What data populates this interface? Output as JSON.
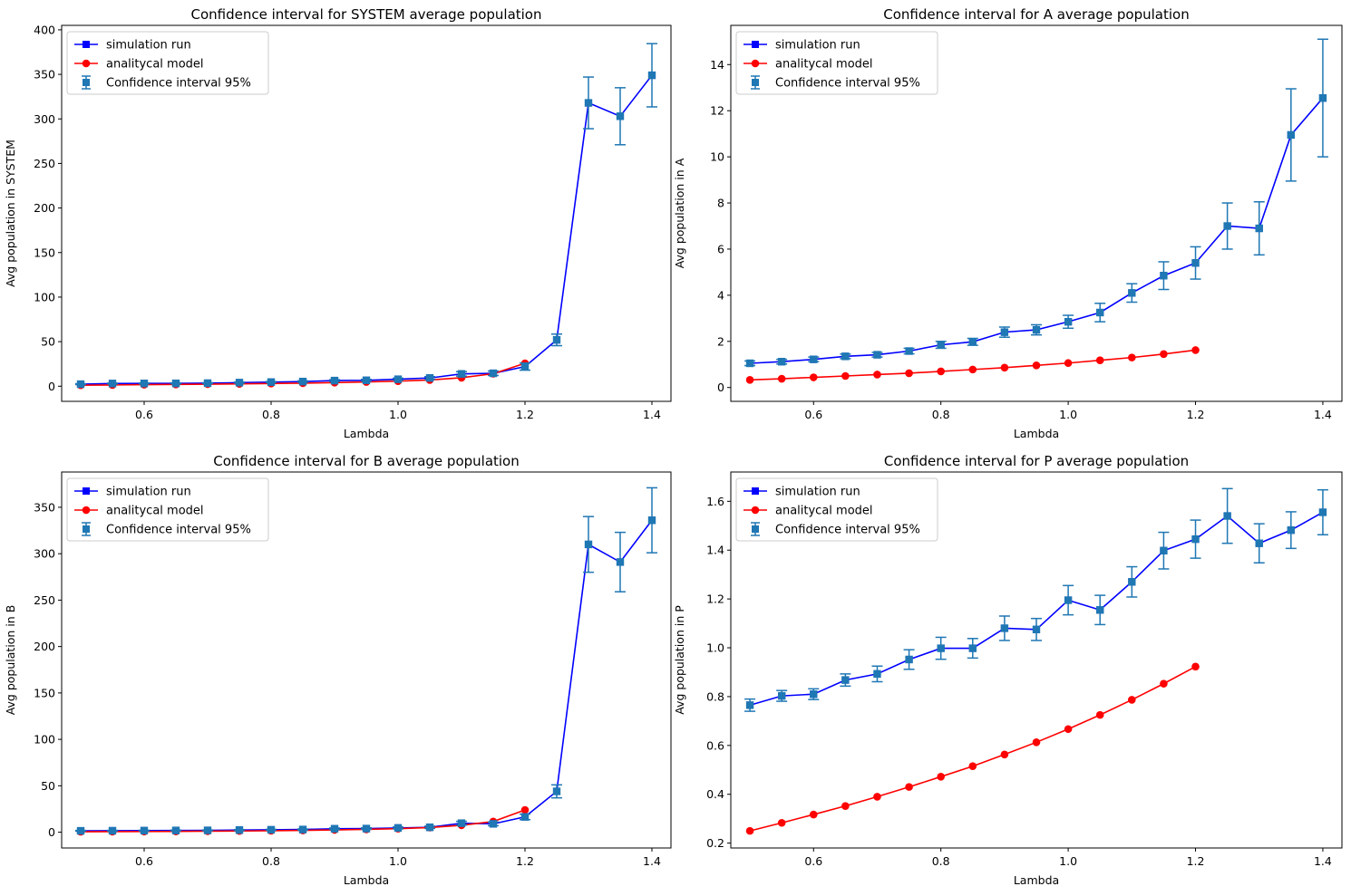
{
  "chart_data": [
    {
      "type": "line",
      "title": "Confidence interval for SYSTEM average population",
      "xlabel": "Lambda",
      "ylabel": "Avg population in SYSTEM",
      "xlim": [
        0.47,
        1.43
      ],
      "ylim": [
        -17,
        405
      ],
      "xticks": [
        0.6,
        0.8,
        1.0,
        1.2,
        1.4
      ],
      "xtick_labels": [
        "0.6",
        "0.8",
        "1.0",
        "1.2",
        "1.4"
      ],
      "yticks": [
        0,
        50,
        100,
        150,
        200,
        250,
        300,
        350,
        400
      ],
      "ytick_labels": [
        "0",
        "50",
        "100",
        "150",
        "200",
        "250",
        "300",
        "350",
        "400"
      ],
      "legend_position": "top-left",
      "series": [
        {
          "name": "simulation run",
          "color": "#0000ff",
          "marker": "square",
          "x": [
            0.5,
            0.55,
            0.6,
            0.65,
            0.7,
            0.75,
            0.8,
            0.85,
            0.9,
            0.95,
            1.0,
            1.05,
            1.1,
            1.15,
            1.2,
            1.25,
            1.3,
            1.35,
            1.4
          ],
          "y": [
            2.3,
            3.0,
            3.1,
            3.2,
            3.4,
            4.0,
            4.6,
            5.2,
            6.3,
            6.6,
            7.8,
            9.2,
            13.8,
            14.5,
            22.0,
            52.0,
            318.0,
            303.0,
            349.0
          ]
        },
        {
          "name": "analitycal model",
          "color": "#ff0000",
          "marker": "circle",
          "x": [
            0.5,
            0.55,
            0.6,
            0.65,
            0.7,
            0.75,
            0.8,
            0.85,
            0.9,
            0.95,
            1.0,
            1.05,
            1.1,
            1.15,
            1.2
          ],
          "y": [
            1.1,
            1.4,
            1.7,
            2.0,
            2.3,
            2.6,
            3.0,
            3.4,
            4.0,
            4.8,
            5.7,
            7.0,
            9.5,
            14.0,
            25.7
          ]
        },
        {
          "name": "Confidence interval 95%",
          "color": "#1f77b4",
          "marker": "square",
          "x": [
            0.5,
            0.55,
            0.6,
            0.65,
            0.7,
            0.75,
            0.8,
            0.85,
            0.9,
            0.95,
            1.0,
            1.05,
            1.1,
            1.15,
            1.2,
            1.25,
            1.3,
            1.35,
            1.4
          ],
          "y": [
            2.3,
            3.0,
            3.1,
            3.2,
            3.4,
            4.0,
            4.6,
            5.2,
            6.3,
            6.6,
            7.8,
            9.2,
            13.8,
            14.5,
            22.0,
            52.0,
            318.0,
            303.0,
            349.0
          ],
          "err": [
            0.5,
            0.5,
            0.5,
            0.5,
            0.5,
            0.6,
            0.6,
            0.8,
            1.0,
            1.0,
            1.2,
            1.5,
            2.5,
            2.5,
            4.0,
            6.5,
            29.0,
            32.0,
            35.5
          ]
        }
      ]
    },
    {
      "type": "line",
      "title": "Confidence interval for A average population",
      "xlabel": "Lambda",
      "ylabel": "Avg population in A",
      "xlim": [
        0.47,
        1.43
      ],
      "ylim": [
        -0.6,
        15.7
      ],
      "xticks": [
        0.6,
        0.8,
        1.0,
        1.2,
        1.4
      ],
      "xtick_labels": [
        "0.6",
        "0.8",
        "1.0",
        "1.2",
        "1.4"
      ],
      "yticks": [
        0,
        2,
        4,
        6,
        8,
        10,
        12,
        14
      ],
      "ytick_labels": [
        "0",
        "2",
        "4",
        "6",
        "8",
        "10",
        "12",
        "14"
      ],
      "legend_position": "top-left",
      "series": [
        {
          "name": "simulation run",
          "color": "#0000ff",
          "marker": "square",
          "x": [
            0.5,
            0.55,
            0.6,
            0.65,
            0.7,
            0.75,
            0.8,
            0.85,
            0.9,
            0.95,
            1.0,
            1.05,
            1.1,
            1.15,
            1.2,
            1.25,
            1.3,
            1.35,
            1.4
          ],
          "y": [
            1.05,
            1.12,
            1.22,
            1.35,
            1.42,
            1.58,
            1.85,
            1.98,
            2.4,
            2.5,
            2.85,
            3.25,
            4.1,
            4.85,
            5.4,
            7.0,
            6.9,
            10.95,
            12.55
          ]
        },
        {
          "name": "analitycal model",
          "color": "#ff0000",
          "marker": "circle",
          "x": [
            0.5,
            0.55,
            0.6,
            0.65,
            0.7,
            0.75,
            0.8,
            0.85,
            0.9,
            0.95,
            1.0,
            1.05,
            1.1,
            1.15,
            1.2
          ],
          "y": [
            0.33,
            0.38,
            0.44,
            0.5,
            0.56,
            0.62,
            0.7,
            0.78,
            0.86,
            0.96,
            1.06,
            1.18,
            1.3,
            1.45,
            1.62
          ]
        },
        {
          "name": "Confidence interval 95%",
          "color": "#1f77b4",
          "marker": "square",
          "x": [
            0.5,
            0.55,
            0.6,
            0.65,
            0.7,
            0.75,
            0.8,
            0.85,
            0.9,
            0.95,
            1.0,
            1.05,
            1.1,
            1.15,
            1.2,
            1.25,
            1.3,
            1.35,
            1.4
          ],
          "y": [
            1.05,
            1.12,
            1.22,
            1.35,
            1.42,
            1.58,
            1.85,
            1.98,
            2.4,
            2.5,
            2.85,
            3.25,
            4.1,
            4.85,
            5.4,
            7.0,
            6.9,
            10.95,
            12.55
          ],
          "err": [
            0.1,
            0.1,
            0.1,
            0.1,
            0.1,
            0.12,
            0.15,
            0.15,
            0.22,
            0.22,
            0.28,
            0.4,
            0.4,
            0.6,
            0.7,
            1.0,
            1.15,
            2.0,
            2.55
          ]
        }
      ]
    },
    {
      "type": "line",
      "title": "Confidence interval for B average population",
      "xlabel": "Lambda",
      "ylabel": "Avg population in B",
      "xlim": [
        0.47,
        1.43
      ],
      "ylim": [
        -17,
        388
      ],
      "xticks": [
        0.6,
        0.8,
        1.0,
        1.2,
        1.4
      ],
      "xtick_labels": [
        "0.6",
        "0.8",
        "1.0",
        "1.2",
        "1.4"
      ],
      "yticks": [
        0,
        50,
        100,
        150,
        200,
        250,
        300,
        350
      ],
      "ytick_labels": [
        "0",
        "50",
        "100",
        "150",
        "200",
        "250",
        "300",
        "350"
      ],
      "legend_position": "top-left",
      "series": [
        {
          "name": "simulation run",
          "color": "#0000ff",
          "marker": "square",
          "x": [
            0.5,
            0.55,
            0.6,
            0.65,
            0.7,
            0.75,
            0.8,
            0.85,
            0.9,
            0.95,
            1.0,
            1.05,
            1.1,
            1.15,
            1.2,
            1.25,
            1.3,
            1.35,
            1.4
          ],
          "y": [
            1.5,
            1.6,
            1.7,
            1.9,
            2.0,
            2.3,
            2.6,
            2.9,
            3.7,
            3.9,
            4.6,
            5.3,
            9.7,
            9.0,
            16.5,
            44.0,
            310.0,
            291.0,
            336.0
          ]
        },
        {
          "name": "analitycal model",
          "color": "#ff0000",
          "marker": "circle",
          "x": [
            0.5,
            0.55,
            0.6,
            0.65,
            0.7,
            0.75,
            0.8,
            0.85,
            0.9,
            0.95,
            1.0,
            1.05,
            1.1,
            1.15,
            1.2
          ],
          "y": [
            0.5,
            0.6,
            0.7,
            0.9,
            1.1,
            1.3,
            1.6,
            2.0,
            2.5,
            3.1,
            3.8,
            5.0,
            7.5,
            11.5,
            24.0
          ]
        },
        {
          "name": "Confidence interval 95%",
          "color": "#1f77b4",
          "marker": "square",
          "x": [
            0.5,
            0.55,
            0.6,
            0.65,
            0.7,
            0.75,
            0.8,
            0.85,
            0.9,
            0.95,
            1.0,
            1.05,
            1.1,
            1.15,
            1.2,
            1.25,
            1.3,
            1.35,
            1.4
          ],
          "y": [
            1.5,
            1.6,
            1.7,
            1.9,
            2.0,
            2.3,
            2.6,
            2.9,
            3.7,
            3.9,
            4.6,
            5.3,
            9.7,
            9.0,
            16.5,
            44.0,
            310.0,
            291.0,
            336.0
          ],
          "err": [
            0.4,
            0.4,
            0.4,
            0.4,
            0.4,
            0.5,
            0.5,
            0.6,
            0.8,
            0.8,
            1.0,
            1.2,
            2.0,
            2.0,
            3.0,
            7.0,
            30.0,
            32.0,
            35.0
          ]
        }
      ]
    },
    {
      "type": "line",
      "title": "Confidence interval for P average population",
      "xlabel": "Lambda",
      "ylabel": "Avg population in P",
      "xlim": [
        0.47,
        1.43
      ],
      "ylim": [
        0.18,
        1.72
      ],
      "xticks": [
        0.6,
        0.8,
        1.0,
        1.2,
        1.4
      ],
      "xtick_labels": [
        "0.6",
        "0.8",
        "1.0",
        "1.2",
        "1.4"
      ],
      "yticks": [
        0.2,
        0.4,
        0.6,
        0.8,
        1.0,
        1.2,
        1.4,
        1.6
      ],
      "ytick_labels": [
        "0.2",
        "0.4",
        "0.6",
        "0.8",
        "1.0",
        "1.2",
        "1.4",
        "1.6"
      ],
      "legend_position": "top-left",
      "series": [
        {
          "name": "simulation run",
          "color": "#0000ff",
          "marker": "square",
          "x": [
            0.5,
            0.55,
            0.6,
            0.65,
            0.7,
            0.75,
            0.8,
            0.85,
            0.9,
            0.95,
            1.0,
            1.05,
            1.1,
            1.15,
            1.2,
            1.25,
            1.3,
            1.35,
            1.4
          ],
          "y": [
            0.765,
            0.803,
            0.81,
            0.868,
            0.893,
            0.952,
            0.998,
            0.998,
            1.08,
            1.075,
            1.195,
            1.155,
            1.27,
            1.398,
            1.445,
            1.54,
            1.428,
            1.482,
            1.555
          ]
        },
        {
          "name": "analitycal model",
          "color": "#ff0000",
          "marker": "circle",
          "x": [
            0.5,
            0.55,
            0.6,
            0.65,
            0.7,
            0.75,
            0.8,
            0.85,
            0.9,
            0.95,
            1.0,
            1.05,
            1.1,
            1.15,
            1.2
          ],
          "y": [
            0.25,
            0.283,
            0.317,
            0.352,
            0.39,
            0.43,
            0.472,
            0.515,
            0.563,
            0.613,
            0.667,
            0.725,
            0.787,
            0.853,
            0.923
          ]
        },
        {
          "name": "Confidence interval 95%",
          "color": "#1f77b4",
          "marker": "square",
          "x": [
            0.5,
            0.55,
            0.6,
            0.65,
            0.7,
            0.75,
            0.8,
            0.85,
            0.9,
            0.95,
            1.0,
            1.05,
            1.1,
            1.15,
            1.2,
            1.25,
            1.3,
            1.35,
            1.4
          ],
          "y": [
            0.765,
            0.803,
            0.81,
            0.868,
            0.893,
            0.952,
            0.998,
            0.998,
            1.08,
            1.075,
            1.195,
            1.155,
            1.27,
            1.398,
            1.445,
            1.54,
            1.428,
            1.482,
            1.555
          ],
          "err": [
            0.025,
            0.022,
            0.022,
            0.025,
            0.032,
            0.04,
            0.045,
            0.04,
            0.05,
            0.045,
            0.06,
            0.06,
            0.062,
            0.075,
            0.078,
            0.112,
            0.08,
            0.075,
            0.092
          ]
        }
      ]
    }
  ]
}
